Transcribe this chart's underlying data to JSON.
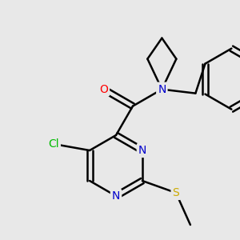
{
  "background_color": "#e8e8e8",
  "atom_colors": {
    "N": "#0000cc",
    "O": "#ff0000",
    "S": "#ccaa00",
    "Cl": "#00bb00",
    "C": "#000000"
  },
  "bond_color": "#000000",
  "line_width": 1.8,
  "figsize": [
    3.0,
    3.0
  ],
  "dpi": 100
}
